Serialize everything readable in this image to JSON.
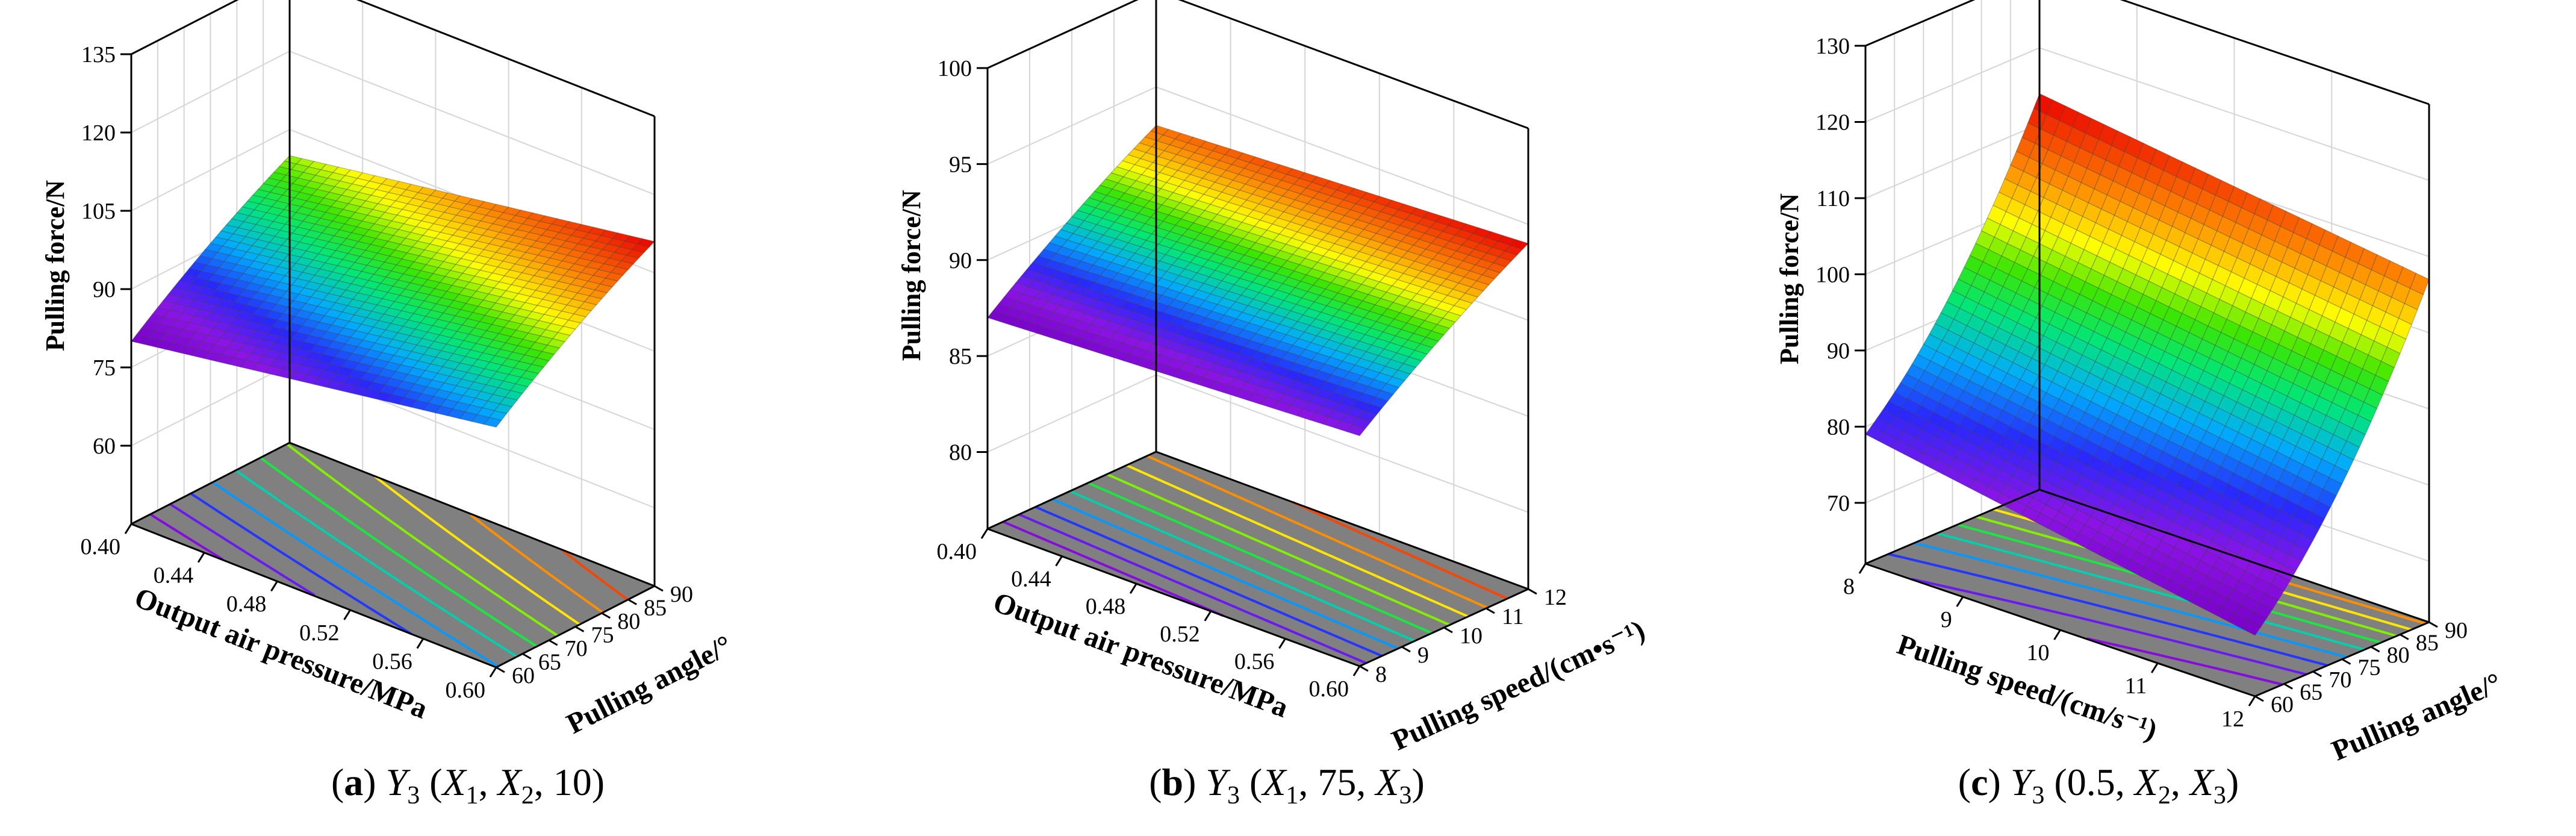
{
  "chart_data": [
    {
      "type": "surface",
      "caption": {
        "letter": "a",
        "y": "Y",
        "y_sub": "3",
        "args": [
          {
            "t": "X",
            "s": "1"
          },
          {
            "t": "X",
            "s": "2"
          },
          {
            "t": "10",
            "s": ""
          }
        ]
      },
      "zlabel": "Pulling force/N",
      "xlabel": "Output air pressure/MPa",
      "ylabel": "Pulling angle/°",
      "x_ticks": [
        "0.40",
        "0.44",
        "0.48",
        "0.52",
        "0.56",
        "0.60"
      ],
      "y_ticks": [
        "60",
        "65",
        "70",
        "75",
        "80",
        "85",
        "90"
      ],
      "z_ticks": [
        "60",
        "75",
        "90",
        "105",
        "120",
        "135"
      ],
      "xlim": [
        0.4,
        0.6
      ],
      "ylim": [
        60,
        90
      ],
      "zlim": [
        60,
        135
      ],
      "z_floor": 45,
      "surface": {
        "z00": 80,
        "z10": 91,
        "z01": 100,
        "z11": 111,
        "curv_y": -4
      },
      "contour_count": 11,
      "grid": true
    },
    {
      "type": "surface",
      "caption": {
        "letter": "b",
        "y": "Y",
        "y_sub": "3",
        "args": [
          {
            "t": "X",
            "s": "1"
          },
          {
            "t": "75",
            "s": ""
          },
          {
            "t": "X",
            "s": "3"
          }
        ]
      },
      "zlabel": "Pulling force/N",
      "xlabel": "Output air pressure/MPa",
      "ylabel": "Pulling speed/(cm•s⁻¹)",
      "x_ticks": [
        "0.40",
        "0.44",
        "0.48",
        "0.52",
        "0.56",
        "0.60"
      ],
      "y_ticks": [
        "8",
        "9",
        "10",
        "11",
        "12"
      ],
      "z_ticks": [
        "80",
        "85",
        "90",
        "95",
        "100"
      ],
      "xlim": [
        0.4,
        0.6
      ],
      "ylim": [
        8,
        12
      ],
      "zlim": [
        80,
        100
      ],
      "z_floor": 76,
      "surface": {
        "z00": 87,
        "z10": 88,
        "z01": 93,
        "z11": 94,
        "curv_y": -1
      },
      "contour_count": 11,
      "grid": true
    },
    {
      "type": "surface",
      "caption": {
        "letter": "c",
        "y": "Y",
        "y_sub": "3",
        "args": [
          {
            "t": "0.5",
            "s": ""
          },
          {
            "t": "X",
            "s": "2"
          },
          {
            "t": "X",
            "s": "3"
          }
        ]
      },
      "zlabel": "Pulling force/N",
      "xlabel": "Pulling speed/(cm/s⁻¹)",
      "ylabel": "Pulling angle/°",
      "x_ticks": [
        "8",
        "9",
        "10",
        "11",
        "12"
      ],
      "y_ticks": [
        "60",
        "65",
        "70",
        "75",
        "80",
        "85",
        "90"
      ],
      "z_ticks": [
        "70",
        "80",
        "90",
        "100",
        "110",
        "120",
        "130"
      ],
      "xlim": [
        8,
        12
      ],
      "ylim": [
        60,
        90
      ],
      "zlim": [
        70,
        130
      ],
      "z_floor": 62,
      "surface": {
        "z00": 79,
        "z10": 70,
        "z01": 114,
        "z11": 107,
        "curv_y": 14
      },
      "contour_count": 11,
      "grid": true
    }
  ]
}
